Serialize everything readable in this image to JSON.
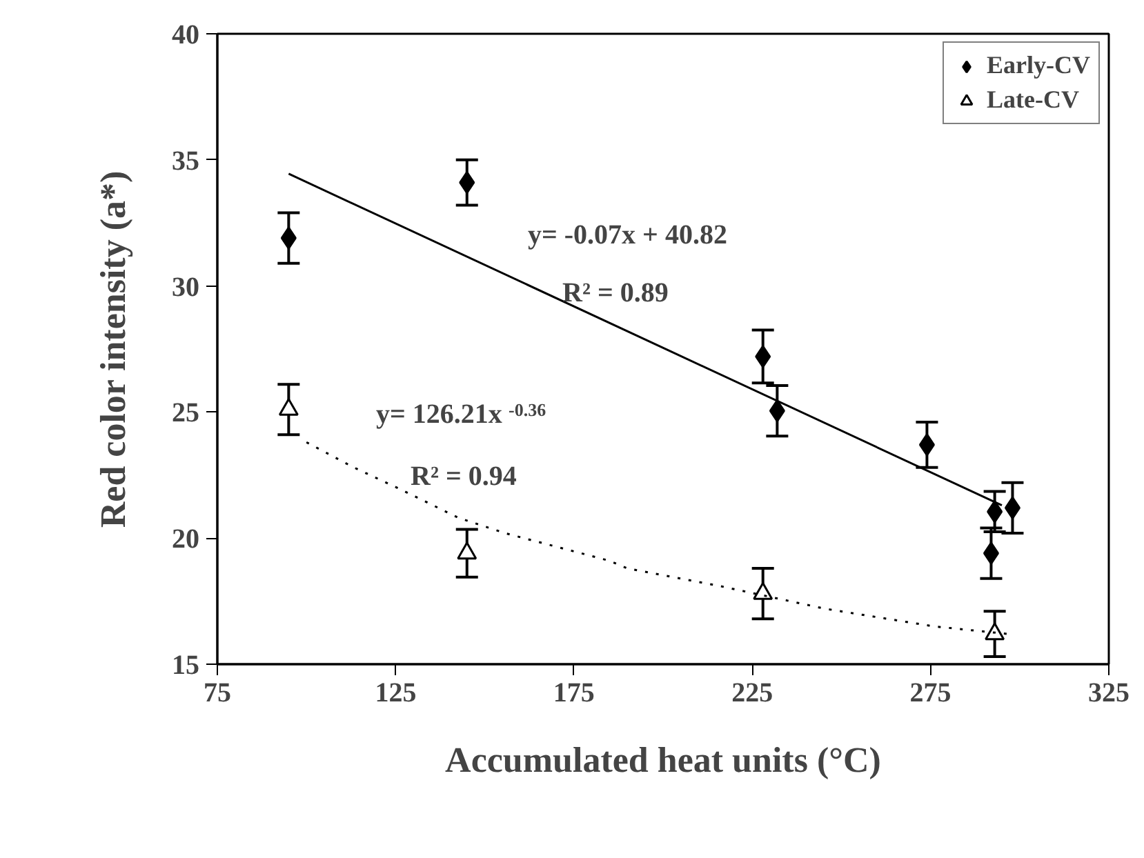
{
  "chart_data": {
    "type": "scatter",
    "xlabel": "Accumulated heat units (°C)",
    "ylabel": "Red color intensity (a*)",
    "xlim": [
      75,
      325
    ],
    "xticks": [
      75,
      125,
      175,
      225,
      275,
      325
    ],
    "ylim": [
      15,
      40
    ],
    "yticks": [
      15,
      20,
      25,
      30,
      35,
      40
    ],
    "grid": false,
    "legend": "top right",
    "series": [
      {
        "name": "Early-CV",
        "color": "#000000",
        "marker": "diamond",
        "x": [
          95,
          145,
          228,
          232,
          274,
          293,
          298,
          292
        ],
        "values": [
          31.9,
          34.1,
          27.2,
          25.05,
          23.7,
          21.05,
          21.2,
          19.4
        ],
        "errors": [
          1,
          0.9,
          1.05,
          1,
          0.9,
          0.8,
          1,
          1
        ]
      },
      {
        "name": "Late-CV",
        "color": "#000000",
        "marker": "triangle",
        "x": [
          95,
          145,
          228,
          293
        ],
        "values": [
          25.1,
          19.4,
          17.8,
          16.2
        ],
        "errors": [
          1,
          0.95,
          1,
          0.9
        ]
      },
      {
        "type": "line",
        "color": "#000000",
        "line_style": "solid",
        "marker": "none",
        "x": [
          95,
          295
        ],
        "values": [
          34.45,
          21.3
        ]
      },
      {
        "type": "line",
        "color": "#000000",
        "line_style": "dotted",
        "marker": "none",
        "x": [
          100,
          113.3,
          125.4,
          142.7,
          155.6,
          185,
          190,
          215.9,
          245.4,
          276,
          296.6
        ],
        "values": [
          23.8,
          22.8,
          22.0,
          20.8,
          20.2,
          19.1,
          18.8,
          18.1,
          17.2,
          16.5,
          16.2
        ]
      }
    ],
    "annotations": [
      "y= -0.07x + 40.82",
      "R² = 0.89",
      "y= 126.21x$^{-0.36}$",
      "R² = 0.94"
    ]
  }
}
